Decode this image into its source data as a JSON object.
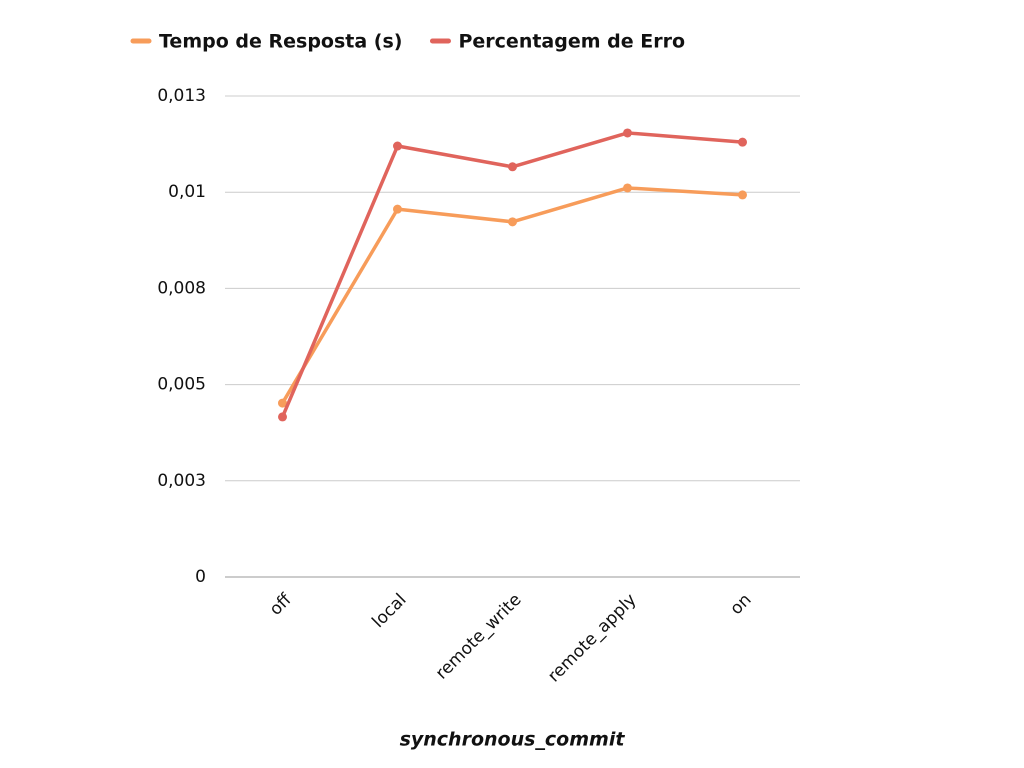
{
  "chart_data": {
    "type": "line",
    "x_label": "synchronous_commit",
    "categories": [
      "off",
      "local",
      "remote_write",
      "remote_apply",
      "on"
    ],
    "series": [
      {
        "name": "Tempo de Resposta (s)",
        "color": "#f79c5a",
        "values": [
          0.00452,
          0.00956,
          0.00923,
          0.01011,
          0.00993
        ]
      },
      {
        "name": "Percentagem de Erro",
        "color": "#e0645c",
        "values": [
          0.00416,
          0.0112,
          0.01066,
          0.01154,
          0.0113
        ]
      }
    ],
    "ylim": [
      0,
      0.0125
    ],
    "yticks": [
      0,
      {
        "value": 0.0025,
        "label": "0,003"
      },
      {
        "value": 0.005,
        "label": "0,005"
      },
      {
        "value": 0.0075,
        "label": "0,008"
      },
      {
        "value": 0.01,
        "label": "0,01"
      },
      {
        "value": 0.0125,
        "label": "0,013"
      }
    ],
    "grid": true,
    "legend": "top"
  }
}
